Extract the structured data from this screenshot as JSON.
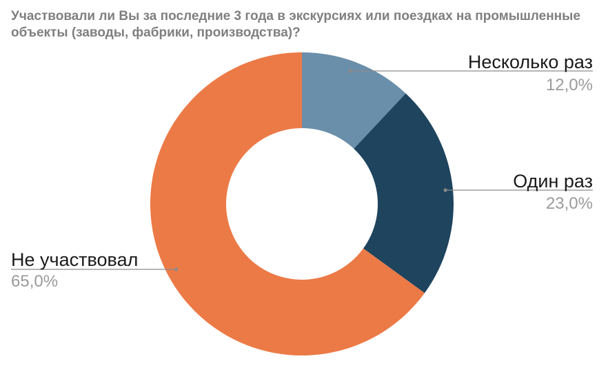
{
  "chart_data": {
    "type": "pie",
    "donut": true,
    "title": "Участвовали ли Вы за последние 3 года в экскурсиях или поездках на промышленные объекты (заводы, фабрики, производства)?",
    "slices": [
      {
        "label": "Несколько раз",
        "value": 12.0,
        "display": "12,0%",
        "color": "#6a8fab"
      },
      {
        "label": "Один раз",
        "value": 23.0,
        "display": "23,0%",
        "color": "#1e445e"
      },
      {
        "label": "Не участвовал",
        "value": 65.0,
        "display": "65,0%",
        "color": "#ec7a46"
      }
    ],
    "start_angle": "12 o'clock",
    "direction": "clockwise",
    "legend": "none"
  }
}
